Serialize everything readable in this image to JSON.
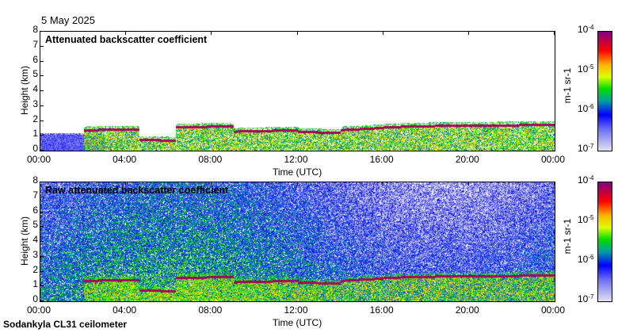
{
  "date": "5 May 2025",
  "footer": "Sodankyla CL31 ceilometer",
  "chart_data": [
    {
      "type": "heatmap",
      "title": "Attenuated backscatter coefficient",
      "xlabel": "Time (UTC)",
      "ylabel": "Height (km)",
      "xticks": [
        "00:00",
        "04:00",
        "08:00",
        "12:00",
        "16:00",
        "20:00",
        "00:00"
      ],
      "yticks": [
        "0",
        "1",
        "2",
        "3",
        "4",
        "5",
        "6",
        "7",
        "8"
      ],
      "ylim": [
        0,
        8
      ],
      "xlim_hours": [
        0,
        24
      ],
      "colorbar": {
        "label": "m-1 sr-1",
        "ticks": [
          "10-7",
          "10-6",
          "10-5",
          "10-4"
        ],
        "range": [
          1e-07,
          0.0001
        ],
        "scale": "log"
      },
      "cloud_base_km": {
        "hours": [
          2,
          4.6,
          4.6,
          6.3,
          6.3,
          9,
          9,
          12,
          12,
          14,
          14,
          16,
          16,
          19,
          19,
          24
        ],
        "height": [
          1.4,
          1.45,
          0.75,
          0.7,
          1.6,
          1.65,
          1.3,
          1.4,
          1.3,
          1.2,
          1.4,
          1.55,
          1.6,
          1.7,
          1.7,
          1.75
        ]
      },
      "noise": false
    },
    {
      "type": "heatmap",
      "title": "Raw attenuated backscatter coefficient",
      "xlabel": "Time (UTC)",
      "ylabel": "Height (km)",
      "xticks": [
        "00:00",
        "04:00",
        "08:00",
        "12:00",
        "16:00",
        "20:00",
        "00:00"
      ],
      "yticks": [
        "0",
        "1",
        "2",
        "3",
        "4",
        "5",
        "6",
        "7",
        "8"
      ],
      "ylim": [
        0,
        8
      ],
      "xlim_hours": [
        0,
        24
      ],
      "colorbar": {
        "label": "m-1 sr-1",
        "ticks": [
          "10-7",
          "10-6",
          "10-5",
          "10-4"
        ],
        "range": [
          1e-07,
          0.0001
        ],
        "scale": "log"
      },
      "cloud_base_km": {
        "hours": [
          2,
          4.6,
          4.6,
          6.3,
          6.3,
          9,
          9,
          12,
          12,
          14,
          14,
          16,
          16,
          19,
          19,
          24
        ],
        "height": [
          1.4,
          1.45,
          0.75,
          0.7,
          1.6,
          1.65,
          1.3,
          1.4,
          1.3,
          1.2,
          1.4,
          1.55,
          1.6,
          1.7,
          1.7,
          1.75
        ]
      },
      "noise": true
    }
  ]
}
